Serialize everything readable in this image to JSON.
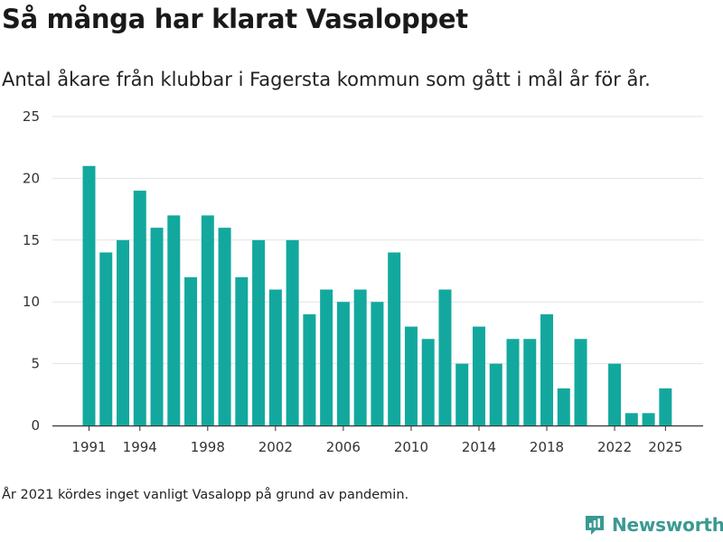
{
  "title": "Så många har klarat Vasaloppet",
  "subtitle": "Antal åkare från klubbar i Fagersta kommun som gått i mål år för år.",
  "note": "År 2021 kördes inget vanligt Vasalopp på grund av pandemin.",
  "brand": {
    "name": "Newsworthy",
    "icon": "newsworthy-logo-icon"
  },
  "colors": {
    "bar": "#13a89e",
    "grid": "#e2e2e2",
    "axis": "#333333",
    "brand": "#3a9a92"
  },
  "chart_data": {
    "type": "bar",
    "title": "Så många har klarat Vasaloppet",
    "xlabel": "",
    "ylabel": "",
    "ylim": [
      0,
      25
    ],
    "yticks": [
      0,
      5,
      10,
      15,
      20,
      25
    ],
    "xtick_labels": [
      "1991",
      "1994",
      "1998",
      "2002",
      "2006",
      "2010",
      "2014",
      "2018",
      "2022",
      "2025"
    ],
    "categories": [
      1991,
      1992,
      1993,
      1994,
      1995,
      1996,
      1997,
      1998,
      1999,
      2000,
      2001,
      2002,
      2003,
      2004,
      2005,
      2006,
      2007,
      2008,
      2009,
      2010,
      2011,
      2012,
      2013,
      2014,
      2015,
      2016,
      2017,
      2018,
      2019,
      2020,
      2021,
      2022,
      2023,
      2024,
      2025
    ],
    "values": [
      21,
      14,
      15,
      19,
      16,
      17,
      12,
      17,
      16,
      12,
      15,
      11,
      15,
      9,
      11,
      10,
      11,
      10,
      14,
      8,
      7,
      11,
      5,
      8,
      5,
      7,
      7,
      9,
      3,
      7,
      null,
      5,
      1,
      1,
      3
    ]
  }
}
